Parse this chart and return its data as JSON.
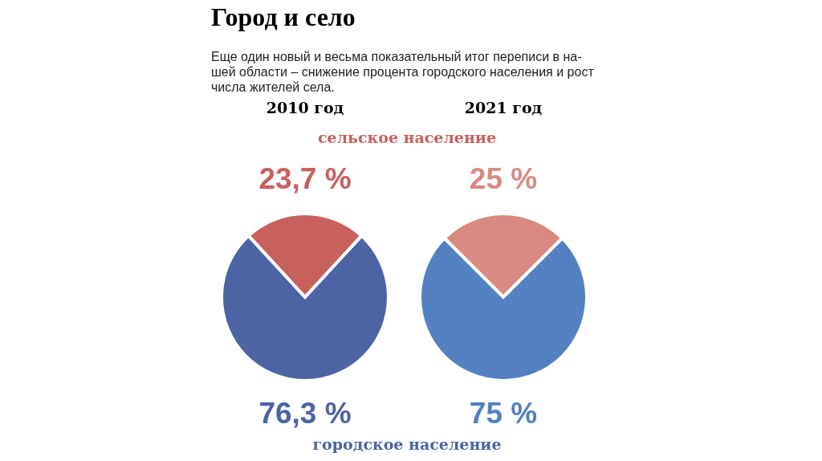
{
  "chart_data": [
    {
      "type": "other",
      "title": "Город и село",
      "subtitle": "Еще один новый и весьма показательный итог переписи в на-\nшей области – снижение процента городского населения и рост\nчисла жителей села.",
      "annotations": [
        "сельское население",
        "городское население"
      ]
    },
    {
      "type": "pie",
      "title": "2010 год",
      "categories": [
        null,
        null
      ],
      "values": [
        23.7,
        76.3
      ],
      "colors": [
        "#c8605c",
        "#4c63a4"
      ],
      "value_labels": [
        "23,7 %",
        "76,3 %"
      ]
    },
    {
      "type": "pie",
      "title": "2021 год",
      "categories": [
        null,
        null
      ],
      "values": [
        25,
        75
      ],
      "colors": [
        "#d88a82",
        "#5280c0"
      ],
      "value_labels": [
        "25 %",
        "75 %"
      ]
    }
  ]
}
